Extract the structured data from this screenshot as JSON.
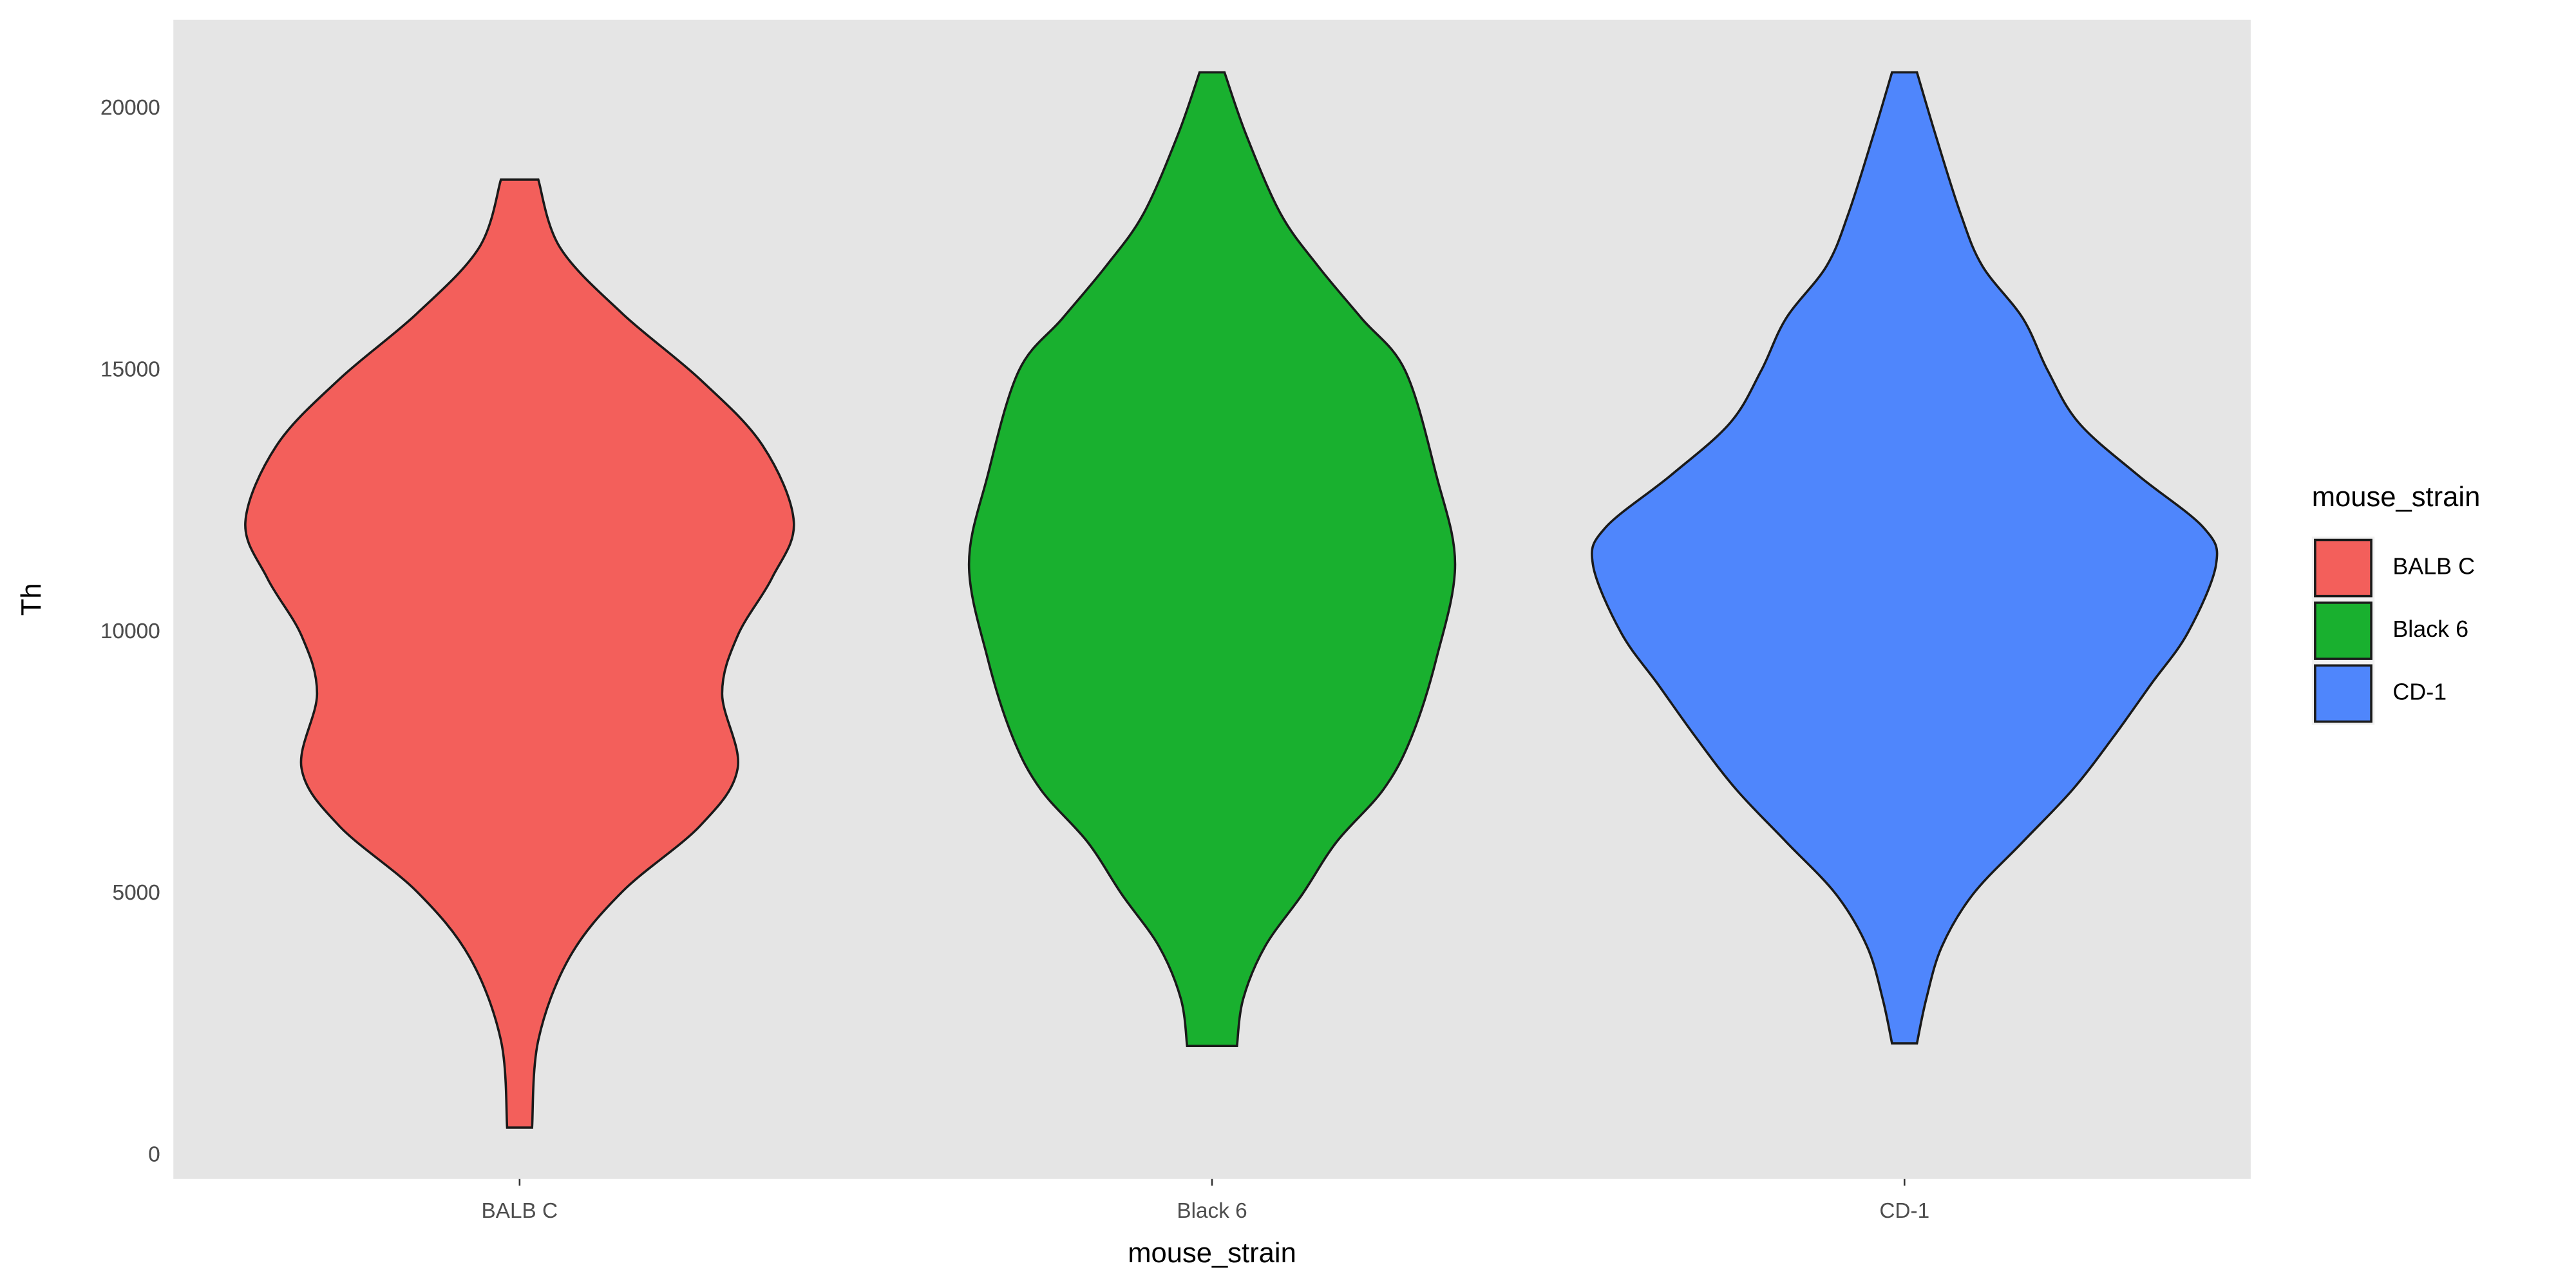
{
  "chart_data": {
    "type": "violin",
    "x_label": "mouse_strain",
    "y_label": "Th",
    "legend_title": "mouse_strain",
    "legend_position": "right",
    "categories": [
      "BALB C",
      "Black 6",
      "CD-1"
    ],
    "ylim": [
      -442,
      21703
    ],
    "yticks": [
      0,
      5000,
      10000,
      15000,
      20000
    ],
    "grid": true,
    "series": [
      {
        "name": "BALB C",
        "color": "#f35f5b",
        "y": [
          540,
          2210,
          3790,
          5050,
          6310,
          7410,
          8830,
          9940,
          11040,
          12115,
          13570,
          14830,
          16090,
          17350,
          18650
        ],
        "density": [
          0.04,
          0.06,
          0.16,
          0.33,
          0.58,
          0.7,
          0.65,
          0.7,
          0.81,
          0.88,
          0.78,
          0.58,
          0.33,
          0.13,
          0.06
        ]
      },
      {
        "name": "Black 6",
        "color": "#19b02f",
        "y": [
          2100,
          3000,
          4000,
          5000,
          6000,
          7000,
          8000,
          9500,
          11300,
          13000,
          15000,
          16000,
          17000,
          18000,
          19500,
          20700
        ],
        "density": [
          0.08,
          0.1,
          0.17,
          0.29,
          0.4,
          0.55,
          0.64,
          0.72,
          0.78,
          0.72,
          0.62,
          0.48,
          0.34,
          0.22,
          0.11,
          0.04
        ]
      },
      {
        "name": "CD-1",
        "color": "#4f86fc",
        "y": [
          2150,
          3000,
          4000,
          5000,
          6000,
          7000,
          8000,
          9000,
          10000,
          11300,
          12000,
          13000,
          14000,
          15000,
          16000,
          17000,
          18000,
          19500,
          20700
        ],
        "density": [
          0.04,
          0.07,
          0.12,
          0.22,
          0.38,
          0.54,
          0.67,
          0.79,
          0.91,
          1,
          0.96,
          0.75,
          0.56,
          0.46,
          0.38,
          0.25,
          0.18,
          0.1,
          0.04
        ]
      }
    ]
  }
}
